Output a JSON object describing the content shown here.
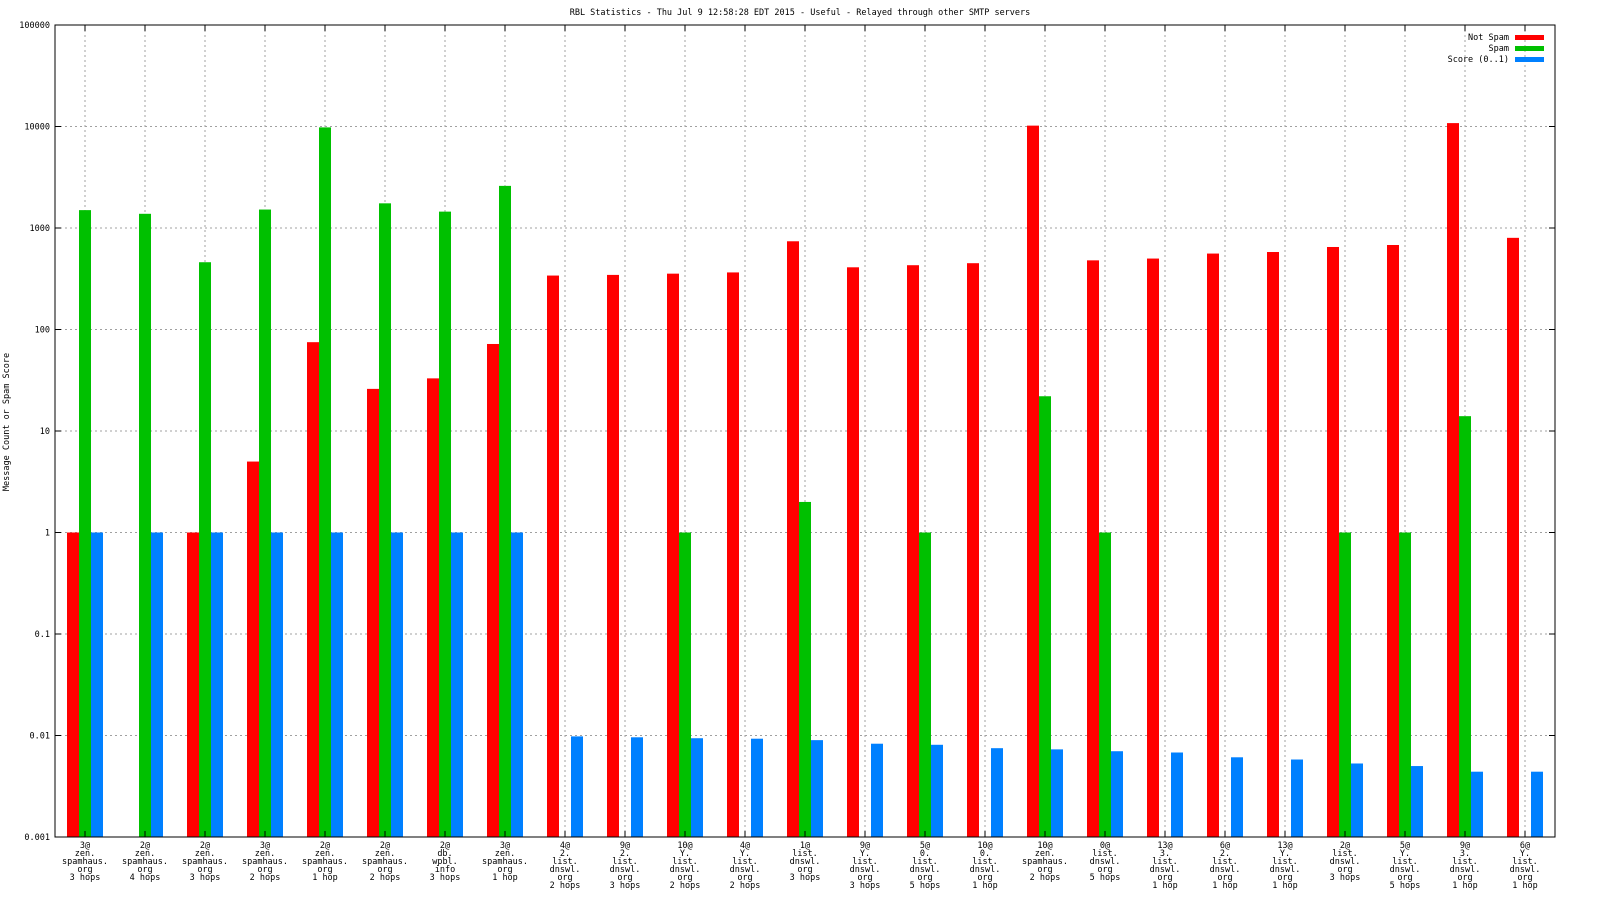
{
  "chart_data": {
    "type": "bar",
    "title": "RBL Statistics - Thu Jul  9 12:58:28 EDT 2015 - Useful - Relayed through other SMTP servers",
    "xlabel": "",
    "ylabel": "Message Count or Spam Score",
    "yscale": "log",
    "ylim": [
      0.001,
      100000
    ],
    "yticks": [
      "0.001",
      "0.01",
      "0.1",
      "1",
      "10",
      "100",
      "1000",
      "10000",
      "100000"
    ],
    "grid": true,
    "legend_position": "top-right",
    "categories": [
      [
        "3@",
        "zen.",
        "spamhaus.",
        "org",
        "3 hops"
      ],
      [
        "2@",
        "zen.",
        "spamhaus.",
        "org",
        "4 hops"
      ],
      [
        "2@",
        "zen.",
        "spamhaus.",
        "org",
        "3 hops"
      ],
      [
        "3@",
        "zen.",
        "spamhaus.",
        "org",
        "2 hops"
      ],
      [
        "2@",
        "zen.",
        "spamhaus.",
        "org",
        "1 hop"
      ],
      [
        "2@",
        "zen.",
        "spamhaus.",
        "org",
        "2 hops"
      ],
      [
        "2@",
        "db.",
        "wpbl.",
        "info",
        "3 hops"
      ],
      [
        "3@",
        "zen.",
        "spamhaus.",
        "org",
        "1 hop"
      ],
      [
        "4@",
        "2.",
        "list.",
        "dnswl.",
        "org",
        "2 hops"
      ],
      [
        "9@",
        "2.",
        "list.",
        "dnswl.",
        "org",
        "3 hops"
      ],
      [
        "10@",
        "Y.",
        "list.",
        "dnswl.",
        "org",
        "2 hops"
      ],
      [
        "4@",
        "Y.",
        "list.",
        "dnswl.",
        "org",
        "2 hops"
      ],
      [
        "1@",
        "list.",
        "dnswl.",
        "org",
        "3 hops"
      ],
      [
        "9@",
        "Y.",
        "list.",
        "dnswl.",
        "org",
        "3 hops"
      ],
      [
        "5@",
        "0.",
        "list.",
        "dnswl.",
        "org",
        "5 hops"
      ],
      [
        "10@",
        "0.",
        "list.",
        "dnswl.",
        "org",
        "1 hop"
      ],
      [
        "10@",
        "zen.",
        "spamhaus.",
        "org",
        "2 hops"
      ],
      [
        "0@",
        "list.",
        "dnswl.",
        "org",
        "5 hops"
      ],
      [
        "13@",
        "3.",
        "list.",
        "dnswl.",
        "org",
        "1 hop"
      ],
      [
        "6@",
        "2.",
        "list.",
        "dnswl.",
        "org",
        "1 hop"
      ],
      [
        "13@",
        "Y.",
        "list.",
        "dnswl.",
        "org",
        "1 hop"
      ],
      [
        "2@",
        "list.",
        "dnswl.",
        "org",
        "3 hops"
      ],
      [
        "5@",
        "Y.",
        "list.",
        "dnswl.",
        "org",
        "5 hops"
      ],
      [
        "9@",
        "3.",
        "list.",
        "dnswl.",
        "org",
        "1 hop"
      ],
      [
        "6@",
        "Y.",
        "list.",
        "dnswl.",
        "org",
        "1 hop"
      ]
    ],
    "series": [
      {
        "name": "Not Spam",
        "color": "#ff0000",
        "values": [
          1,
          null,
          1,
          5,
          75,
          26,
          33,
          72,
          340,
          345,
          355,
          365,
          740,
          410,
          430,
          450,
          10200,
          480,
          500,
          560,
          580,
          650,
          680,
          10800,
          800
        ]
      },
      {
        "name": "Spam",
        "color": "#00c000",
        "values": [
          1500,
          1380,
          460,
          1520,
          9800,
          1750,
          1450,
          2600,
          null,
          null,
          1,
          null,
          2,
          null,
          1,
          null,
          22,
          1,
          null,
          null,
          null,
          1,
          1,
          14,
          null
        ]
      },
      {
        "name": "Score (0..1)",
        "color": "#0080ff",
        "values": [
          1,
          1,
          1,
          1,
          1,
          1,
          1,
          1,
          0.0098,
          0.0096,
          0.0094,
          0.0093,
          0.009,
          0.0083,
          0.0081,
          0.0075,
          0.0073,
          0.007,
          0.0068,
          0.0061,
          0.0058,
          0.0053,
          0.005,
          0.0044,
          0.0044
        ]
      }
    ]
  }
}
